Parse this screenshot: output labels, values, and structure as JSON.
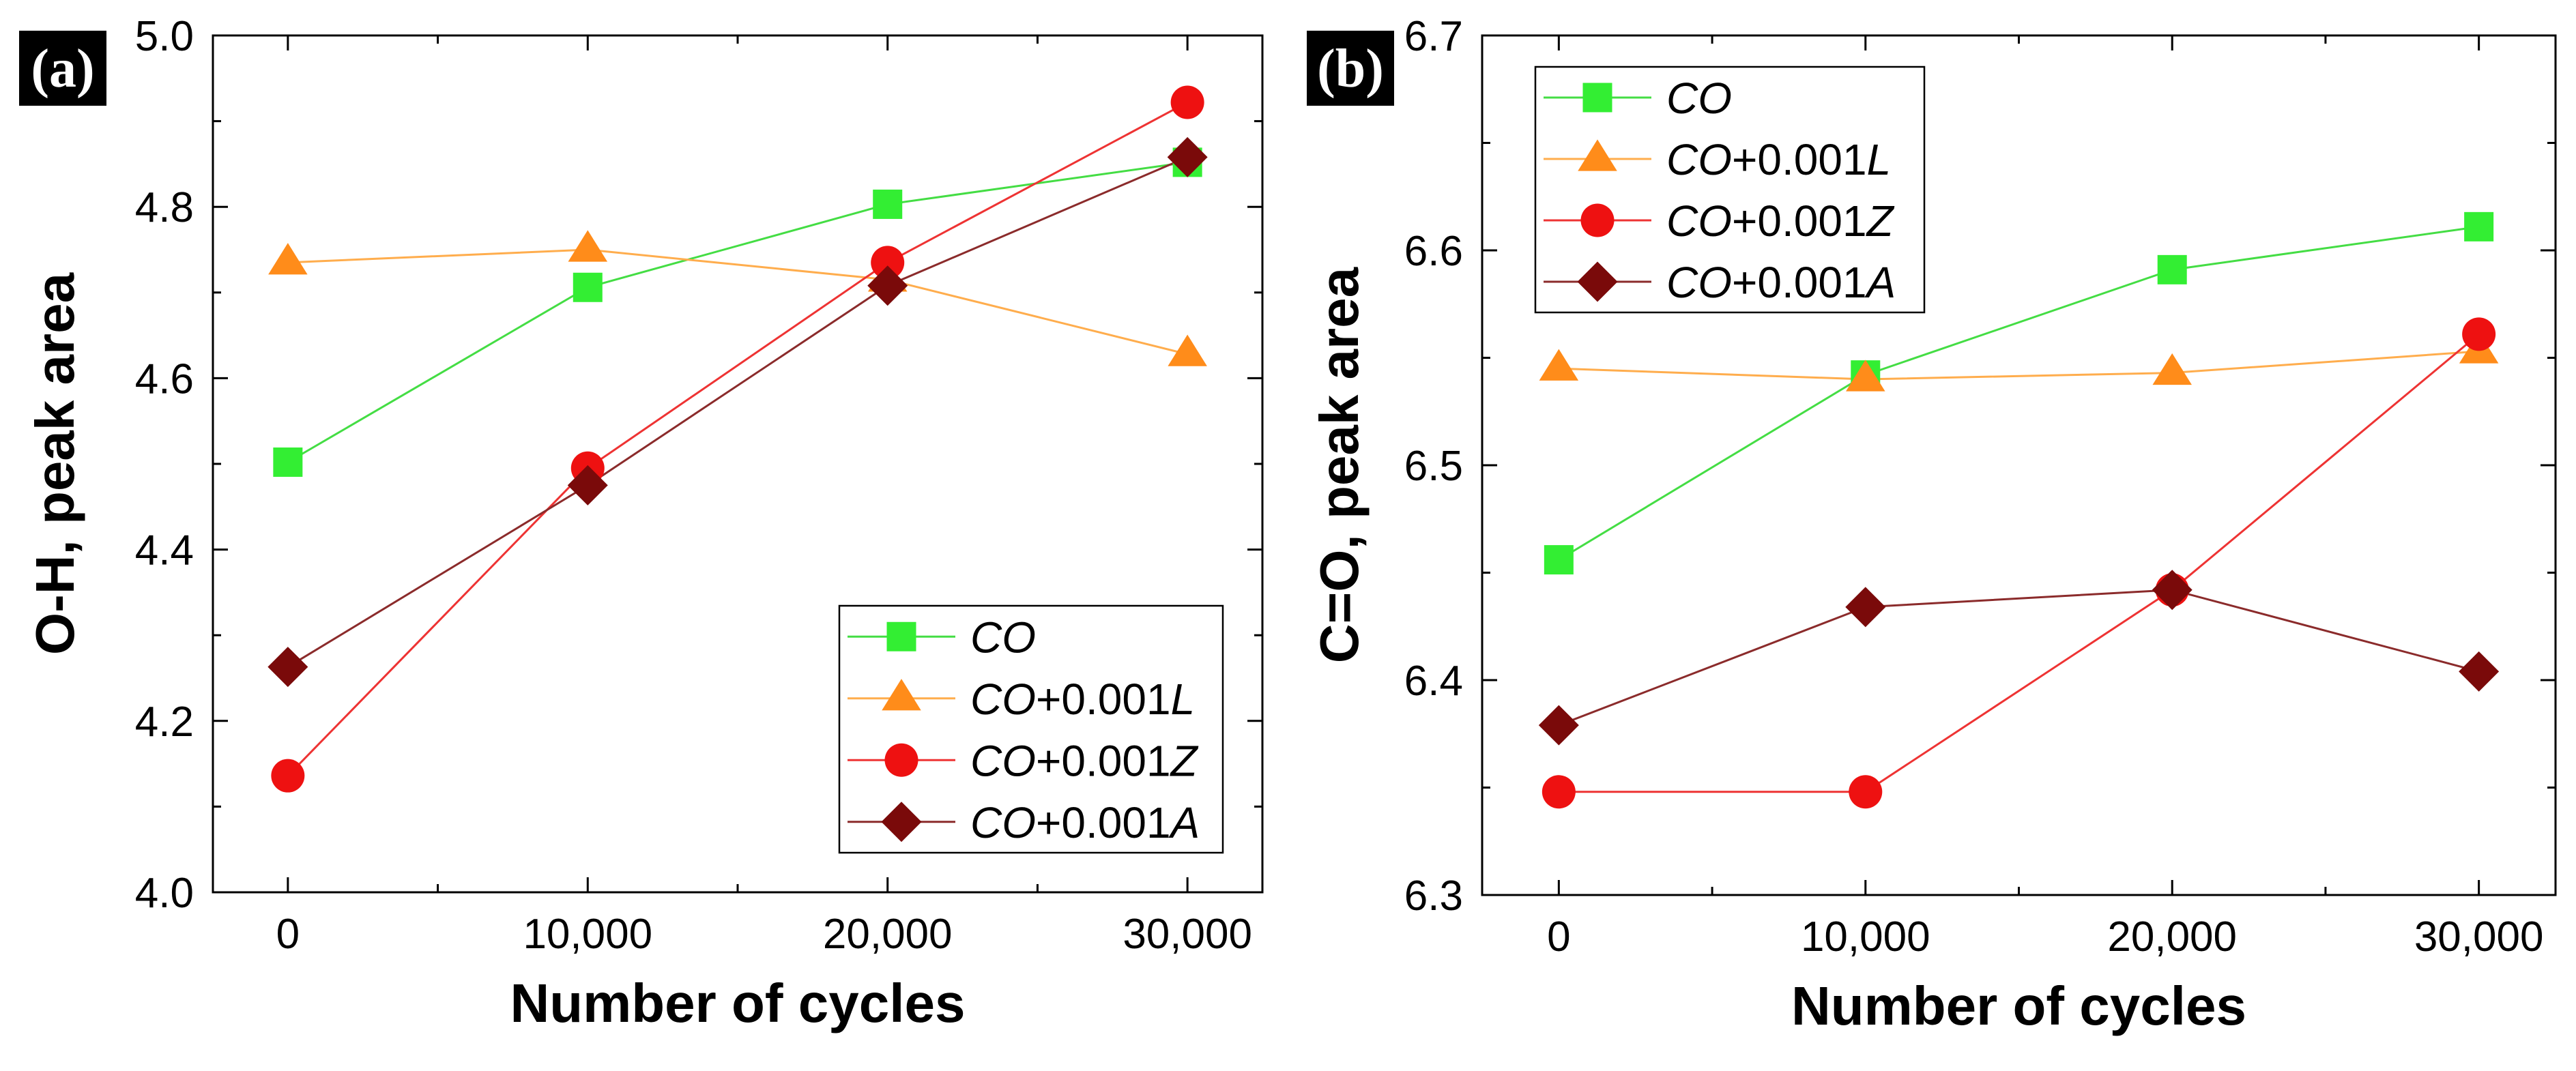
{
  "chart_data": [
    {
      "type": "line",
      "panel_label": "(a)",
      "xlabel": "Number of cycles",
      "ylabel": "O-H, peak area",
      "x": [
        0,
        10000,
        20000,
        30000
      ],
      "x_tick_labels": [
        "0",
        "10,000",
        "20,000",
        "30,000"
      ],
      "xlim": [
        -2500,
        32500
      ],
      "ylim": [
        4.0,
        5.0
      ],
      "y_ticks": [
        4.0,
        4.2,
        4.4,
        4.6,
        4.8,
        5.0
      ],
      "y_tick_labels": [
        "4.0",
        "4.2",
        "4.4",
        "4.6",
        "4.8",
        "5.0"
      ],
      "legend_position": "bottom-right",
      "series": [
        {
          "name": "CO",
          "label_parts": [
            {
              "t": "CO",
              "i": true
            }
          ],
          "marker": "square",
          "color": "#33ee33",
          "line_color": "#44dd44",
          "values": [
            4.502,
            4.706,
            4.803,
            4.852
          ]
        },
        {
          "name": "CO+0.001L",
          "label_parts": [
            {
              "t": "CO",
              "i": true
            },
            {
              "t": "+0.001",
              "i": false
            },
            {
              "t": "L",
              "i": true
            }
          ],
          "marker": "triangle",
          "color": "#ff8c1a",
          "line_color": "#ffad4d",
          "values": [
            4.735,
            4.75,
            4.715,
            4.628
          ]
        },
        {
          "name": "CO+0.001Z",
          "label_parts": [
            {
              "t": "CO",
              "i": true
            },
            {
              "t": "+0.001",
              "i": false
            },
            {
              "t": "Z",
              "i": true
            }
          ],
          "marker": "circle",
          "color": "#ee1111",
          "line_color": "#ee3333",
          "values": [
            4.136,
            4.495,
            4.735,
            4.922
          ]
        },
        {
          "name": "CO+0.001A",
          "label_parts": [
            {
              "t": "CO",
              "i": true
            },
            {
              "t": "+0.001",
              "i": false
            },
            {
              "t": "A",
              "i": true
            }
          ],
          "marker": "diamond",
          "color": "#7a0a0a",
          "line_color": "#8b2b2b",
          "values": [
            4.263,
            4.475,
            4.708,
            4.858
          ]
        }
      ]
    },
    {
      "type": "line",
      "panel_label": "(b)",
      "xlabel": "Number of cycles",
      "ylabel": "C=O, peak area",
      "x": [
        0,
        10000,
        20000,
        30000
      ],
      "x_tick_labels": [
        "0",
        "10,000",
        "20,000",
        "30,000"
      ],
      "xlim": [
        -2500,
        32500
      ],
      "ylim": [
        6.3,
        6.7
      ],
      "y_ticks": [
        6.3,
        6.4,
        6.5,
        6.6,
        6.7
      ],
      "y_tick_labels": [
        "6.3",
        "6.4",
        "6.5",
        "6.6",
        "6.7"
      ],
      "legend_position": "top-left",
      "series": [
        {
          "name": "CO",
          "label_parts": [
            {
              "t": "CO",
              "i": true
            }
          ],
          "marker": "square",
          "color": "#33ee33",
          "line_color": "#44dd44",
          "values": [
            6.456,
            6.542,
            6.591,
            6.611
          ]
        },
        {
          "name": "CO+0.001L",
          "label_parts": [
            {
              "t": "CO",
              "i": true
            },
            {
              "t": "+0.001",
              "i": false
            },
            {
              "t": "L",
              "i": true
            }
          ],
          "marker": "triangle",
          "color": "#ff8c1a",
          "line_color": "#ffad4d",
          "values": [
            6.545,
            6.54,
            6.543,
            6.553
          ]
        },
        {
          "name": "CO+0.001Z",
          "label_parts": [
            {
              "t": "CO",
              "i": true
            },
            {
              "t": "+0.001",
              "i": false
            },
            {
              "t": "Z",
              "i": true
            }
          ],
          "marker": "circle",
          "color": "#ee1111",
          "line_color": "#ee3333",
          "values": [
            6.348,
            6.348,
            6.442,
            6.561
          ]
        },
        {
          "name": "CO+0.001A",
          "label_parts": [
            {
              "t": "CO",
              "i": true
            },
            {
              "t": "+0.001",
              "i": false
            },
            {
              "t": "A",
              "i": true
            }
          ],
          "marker": "diamond",
          "color": "#7a0a0a",
          "line_color": "#8b2b2b",
          "values": [
            6.379,
            6.434,
            6.442,
            6.404
          ]
        }
      ]
    }
  ]
}
